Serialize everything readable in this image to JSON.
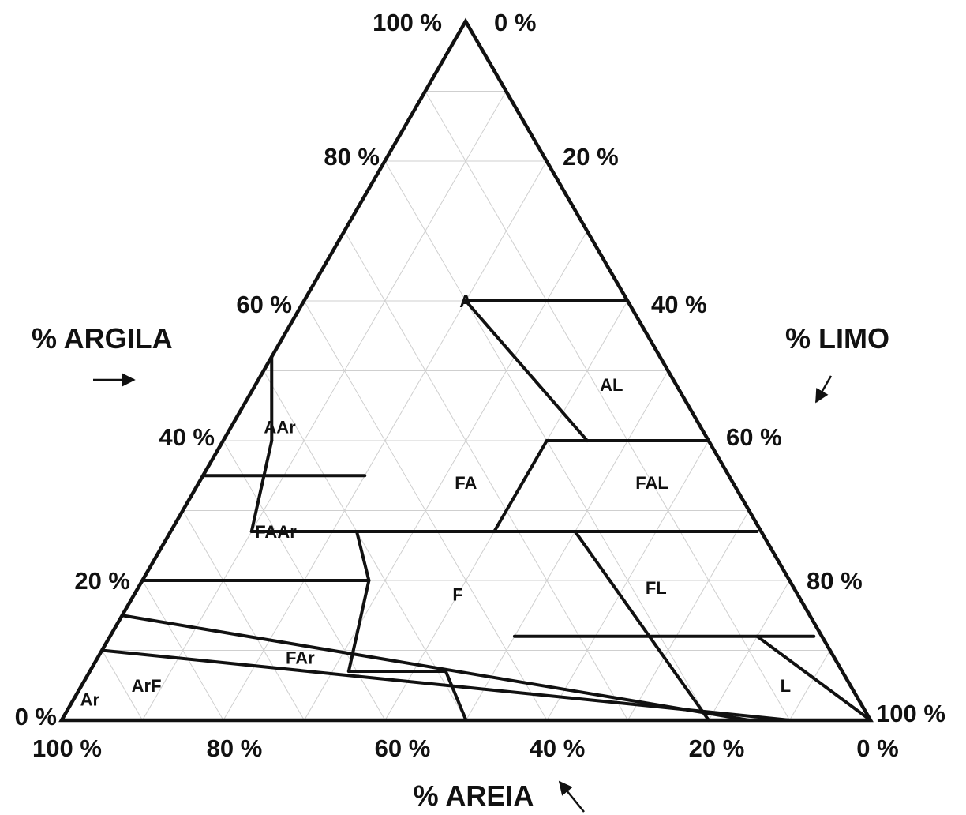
{
  "axes": {
    "argila": {
      "title": "% ARGILA",
      "ticks": [
        {
          "label": "100 %",
          "value": 100
        },
        {
          "label": "80 %",
          "value": 80
        },
        {
          "label": "60 %",
          "value": 60
        },
        {
          "label": "40 %",
          "value": 40
        },
        {
          "label": "20 %",
          "value": 20
        },
        {
          "label": "0 %",
          "value": 0
        }
      ]
    },
    "limo": {
      "title": "% LIMO",
      "ticks": [
        {
          "label": "0 %",
          "value": 0
        },
        {
          "label": "20 %",
          "value": 20
        },
        {
          "label": "40 %",
          "value": 40
        },
        {
          "label": "60 %",
          "value": 60
        },
        {
          "label": "80 %",
          "value": 80
        },
        {
          "label": "100 %",
          "value": 100
        }
      ]
    },
    "areia": {
      "title": "% AREIA",
      "ticks": [
        {
          "label": "100 %",
          "value": 100
        },
        {
          "label": "80 %",
          "value": 80
        },
        {
          "label": "60 %",
          "value": 60
        },
        {
          "label": "40 %",
          "value": 40
        },
        {
          "label": "20 %",
          "value": 20
        },
        {
          "label": "0 %",
          "value": 0
        }
      ]
    }
  },
  "classes": [
    {
      "code": "A",
      "clay": 60,
      "silt": 20
    },
    {
      "code": "AL",
      "clay": 48,
      "silt": 44
    },
    {
      "code": "AAr",
      "clay": 42,
      "silt": 6
    },
    {
      "code": "FA",
      "clay": 34,
      "silt": 33
    },
    {
      "code": "FAL",
      "clay": 34,
      "silt": 56
    },
    {
      "code": "FAAr",
      "clay": 27,
      "silt": 13
    },
    {
      "code": "F",
      "clay": 18,
      "silt": 40
    },
    {
      "code": "FL",
      "clay": 19,
      "silt": 64
    },
    {
      "code": "FAr",
      "clay": 9,
      "silt": 25
    },
    {
      "code": "ArF",
      "clay": 5,
      "silt": 8
    },
    {
      "code": "L",
      "clay": 5,
      "silt": 87
    },
    {
      "code": "Ar",
      "clay": 3,
      "silt": 2
    }
  ],
  "boundaries": [
    [
      [
        60,
        20
      ],
      [
        60,
        40
      ]
    ],
    [
      [
        40,
        45
      ],
      [
        60,
        20
      ]
    ],
    [
      [
        40,
        40
      ],
      [
        40,
        60
      ]
    ],
    [
      [
        52,
        0
      ],
      [
        40,
        6
      ]
    ],
    [
      [
        40,
        6
      ],
      [
        27,
        10
      ]
    ],
    [
      [
        35,
        0
      ],
      [
        35,
        20
      ]
    ],
    [
      [
        27,
        10
      ],
      [
        27,
        52
      ]
    ],
    [
      [
        40,
        40
      ],
      [
        27,
        40
      ]
    ],
    [
      [
        27,
        52
      ],
      [
        27,
        72.5
      ]
    ],
    [
      [
        27,
        23
      ],
      [
        20,
        28
      ]
    ],
    [
      [
        20,
        0
      ],
      [
        20,
        28
      ]
    ],
    [
      [
        20,
        28
      ],
      [
        7,
        32
      ]
    ],
    [
      [
        7,
        32
      ],
      [
        7,
        44
      ]
    ],
    [
      [
        7,
        44
      ],
      [
        0,
        50
      ]
    ],
    [
      [
        27,
        50
      ],
      [
        0,
        80
      ]
    ],
    [
      [
        12,
        50
      ],
      [
        12,
        87
      ]
    ],
    [
      [
        12,
        80
      ],
      [
        0,
        100
      ]
    ],
    [
      [
        15,
        0
      ],
      [
        0,
        85
      ]
    ],
    [
      [
        10,
        0
      ],
      [
        0,
        90
      ]
    ]
  ],
  "grid_step": 10
}
